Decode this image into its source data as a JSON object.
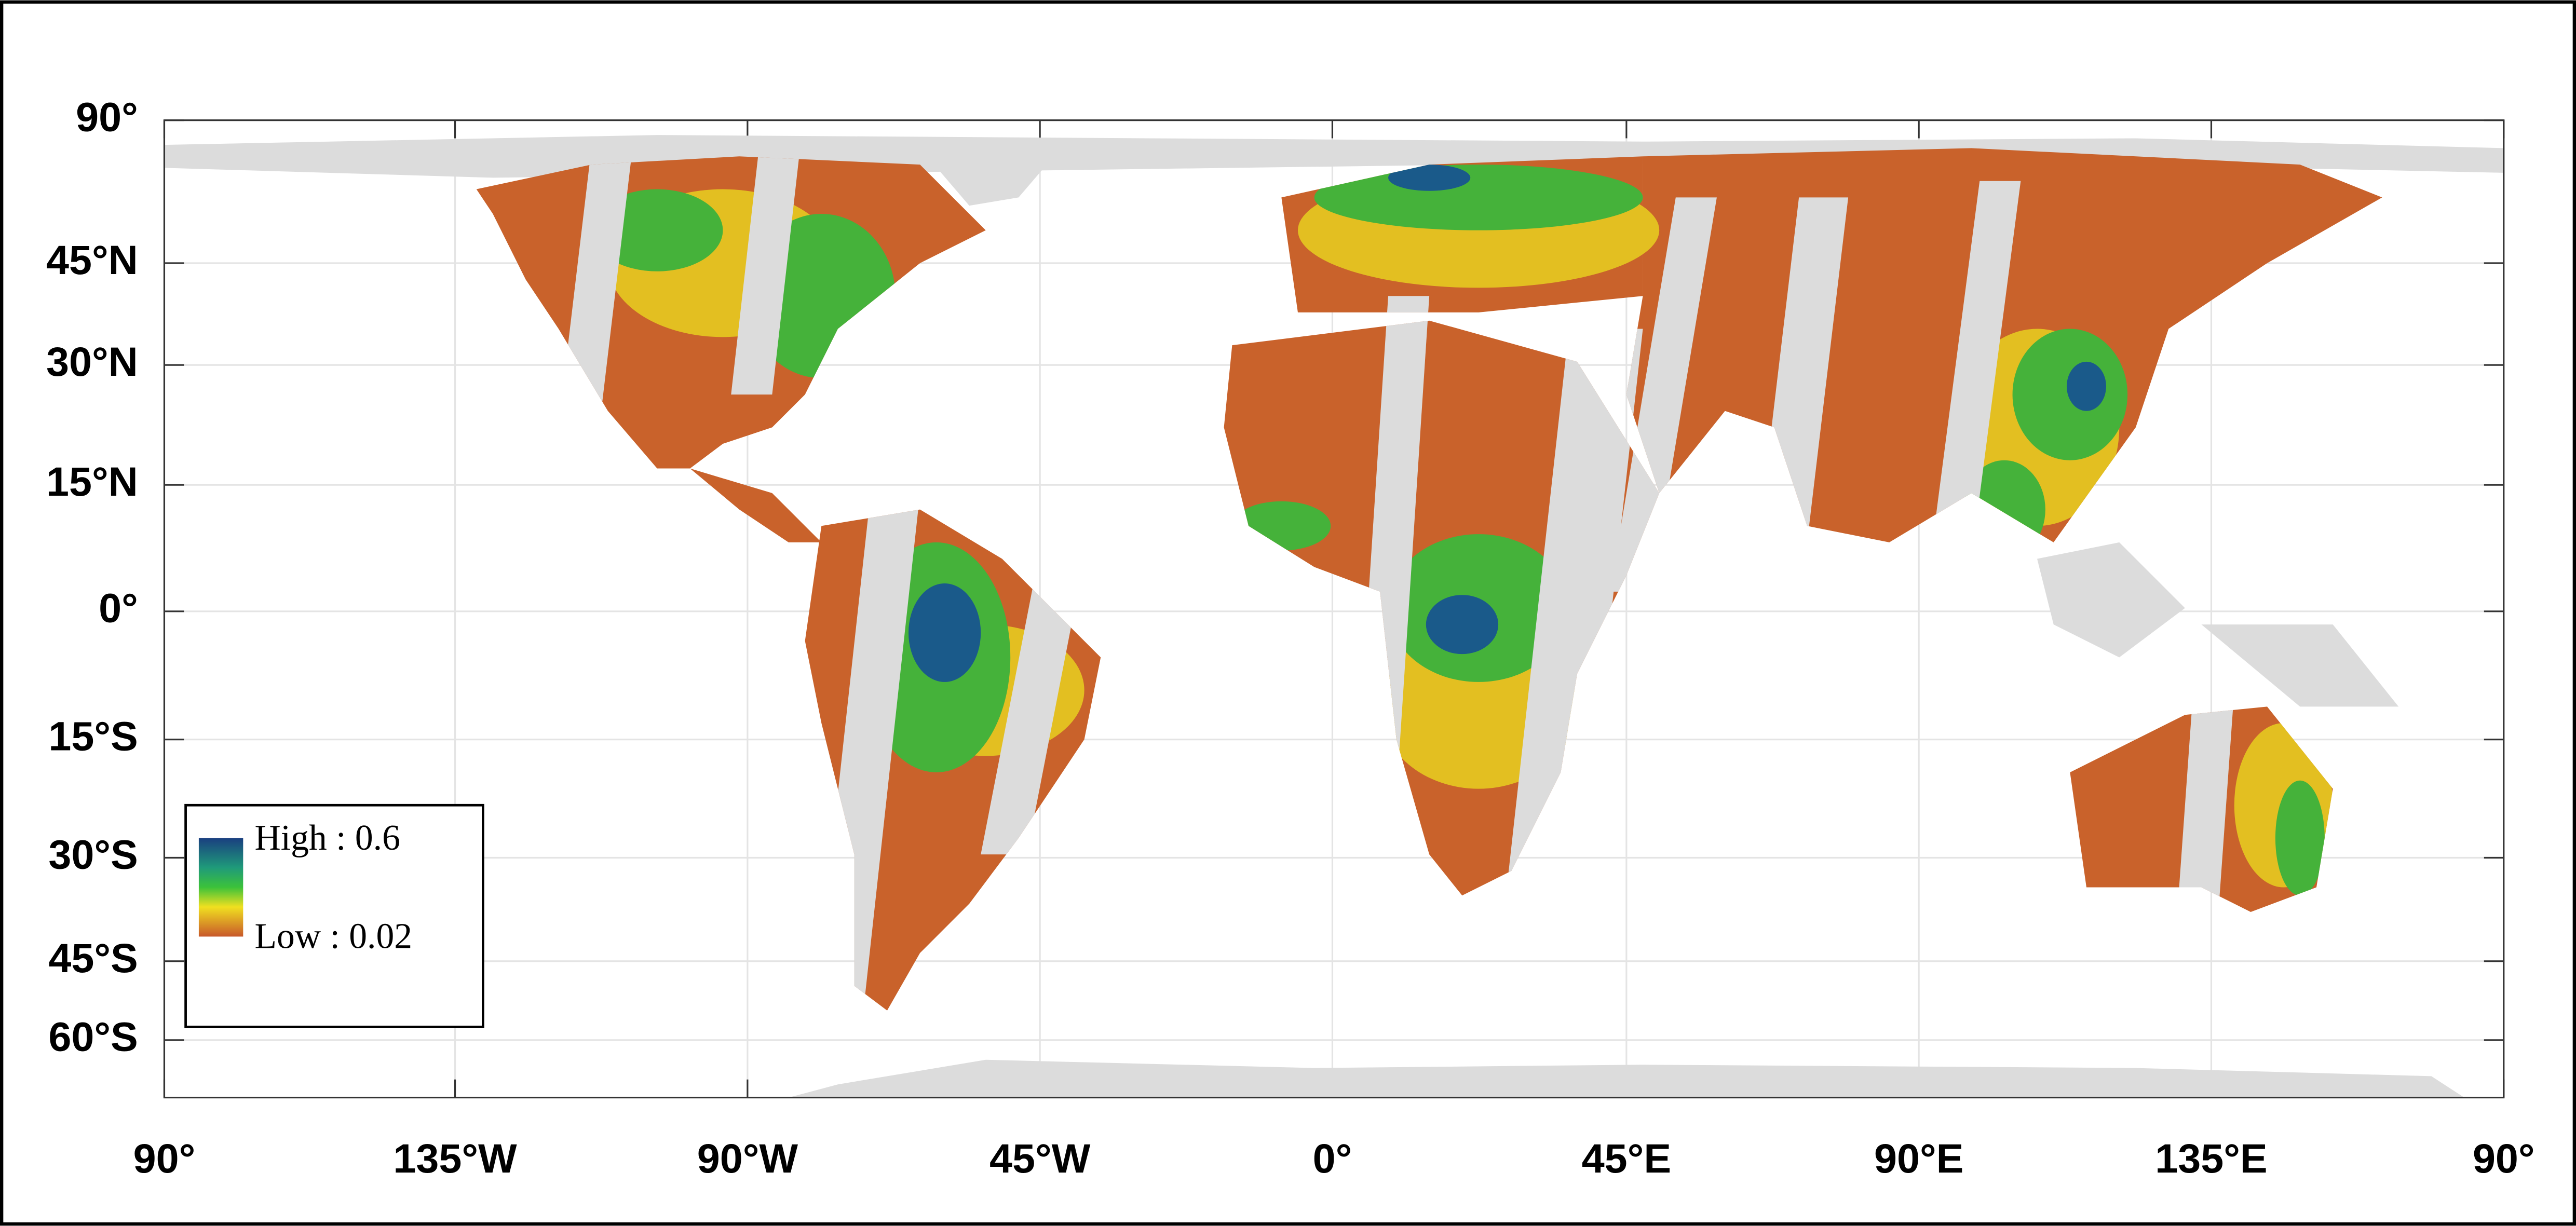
{
  "axes": {
    "y_labels": [
      "90°",
      "45°N",
      "30°N",
      "15°N",
      "0°",
      "15°S",
      "30°S",
      "45°S",
      "60°S"
    ],
    "x_labels": [
      "90°",
      "135°W",
      "90°W",
      "45°W",
      "0°",
      "45°E",
      "90°E",
      "135°E",
      "90°"
    ]
  },
  "legend": {
    "high": "High : 0.6",
    "low": "Low : 0.02"
  }
}
